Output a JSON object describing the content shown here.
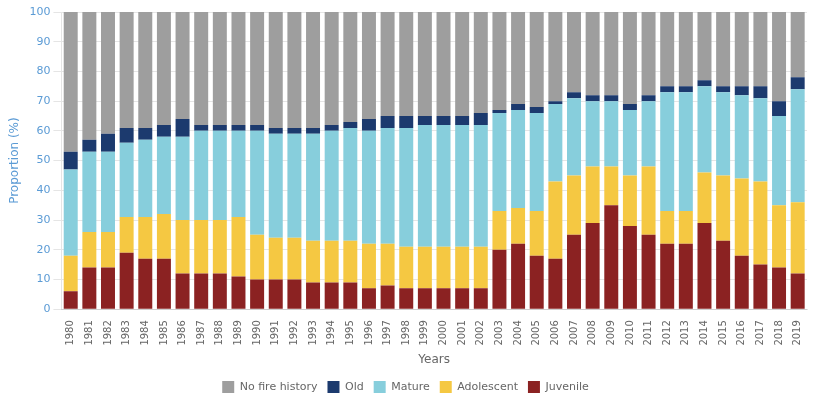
{
  "chart_data": {
    "type": "bar",
    "stacked": true,
    "categories": [
      "1980",
      "1981",
      "1982",
      "1983",
      "1984",
      "1985",
      "1986",
      "1987",
      "1988",
      "1989",
      "1990",
      "1991",
      "1992",
      "1993",
      "1994",
      "1995",
      "1996",
      "1997",
      "1998",
      "1999",
      "2000",
      "2001",
      "2002",
      "2003",
      "2004",
      "2005",
      "2006",
      "2007",
      "2008",
      "2009",
      "2010",
      "2011",
      "2012",
      "2013",
      "2014",
      "2015",
      "2016",
      "2017",
      "2018",
      "2019"
    ],
    "series": [
      {
        "name": "Juvenile",
        "color": "#8B2222",
        "values": [
          6,
          14,
          14,
          19,
          17,
          17,
          12,
          12,
          12,
          11,
          10,
          10,
          10,
          9,
          9,
          9,
          7,
          8,
          7,
          7,
          7,
          7,
          7,
          20,
          22,
          18,
          17,
          25,
          29,
          35,
          28,
          25,
          22,
          22,
          29,
          23,
          18,
          15,
          14,
          12
        ]
      },
      {
        "name": "Adolescent",
        "color": "#F5C842",
        "values": [
          12,
          12,
          12,
          12,
          14,
          15,
          18,
          18,
          18,
          20,
          15,
          14,
          14,
          14,
          14,
          14,
          15,
          14,
          14,
          14,
          14,
          14,
          14,
          13,
          12,
          15,
          26,
          20,
          19,
          13,
          17,
          23,
          11,
          11,
          17,
          22,
          26,
          28,
          21,
          24
        ]
      },
      {
        "name": "Mature",
        "color": "#87CEDC",
        "values": [
          29,
          27,
          27,
          25,
          26,
          26,
          28,
          30,
          30,
          29,
          35,
          35,
          35,
          36,
          37,
          38,
          38,
          39,
          40,
          41,
          41,
          41,
          41,
          33,
          33,
          33,
          26,
          26,
          22,
          22,
          22,
          22,
          40,
          40,
          29,
          28,
          28,
          28,
          30,
          38
        ]
      },
      {
        "name": "Old",
        "color": "#1C3A6E",
        "values": [
          6,
          4,
          6,
          5,
          4,
          4,
          6,
          2,
          2,
          2,
          2,
          2,
          2,
          2,
          2,
          2,
          4,
          4,
          4,
          3,
          3,
          3,
          4,
          1,
          2,
          2,
          1,
          2,
          2,
          2,
          2,
          2,
          2,
          2,
          2,
          2,
          3,
          4,
          5,
          4
        ]
      },
      {
        "name": "No fire history",
        "color": "#9E9E9E",
        "values": [
          47,
          43,
          41,
          39,
          39,
          38,
          36,
          38,
          38,
          38,
          38,
          39,
          39,
          39,
          38,
          37,
          36,
          35,
          35,
          35,
          35,
          35,
          34,
          33,
          31,
          32,
          30,
          27,
          28,
          28,
          31,
          28,
          25,
          25,
          23,
          25,
          25,
          25,
          30,
          22
        ]
      }
    ],
    "xlabel": "Years",
    "ylabel": "Proportion (%)",
    "ylim": [
      0,
      100
    ],
    "yticks": [
      0,
      10,
      20,
      30,
      40,
      50,
      60,
      70,
      80,
      90,
      100
    ],
    "grid": true,
    "legend": "bottom"
  }
}
